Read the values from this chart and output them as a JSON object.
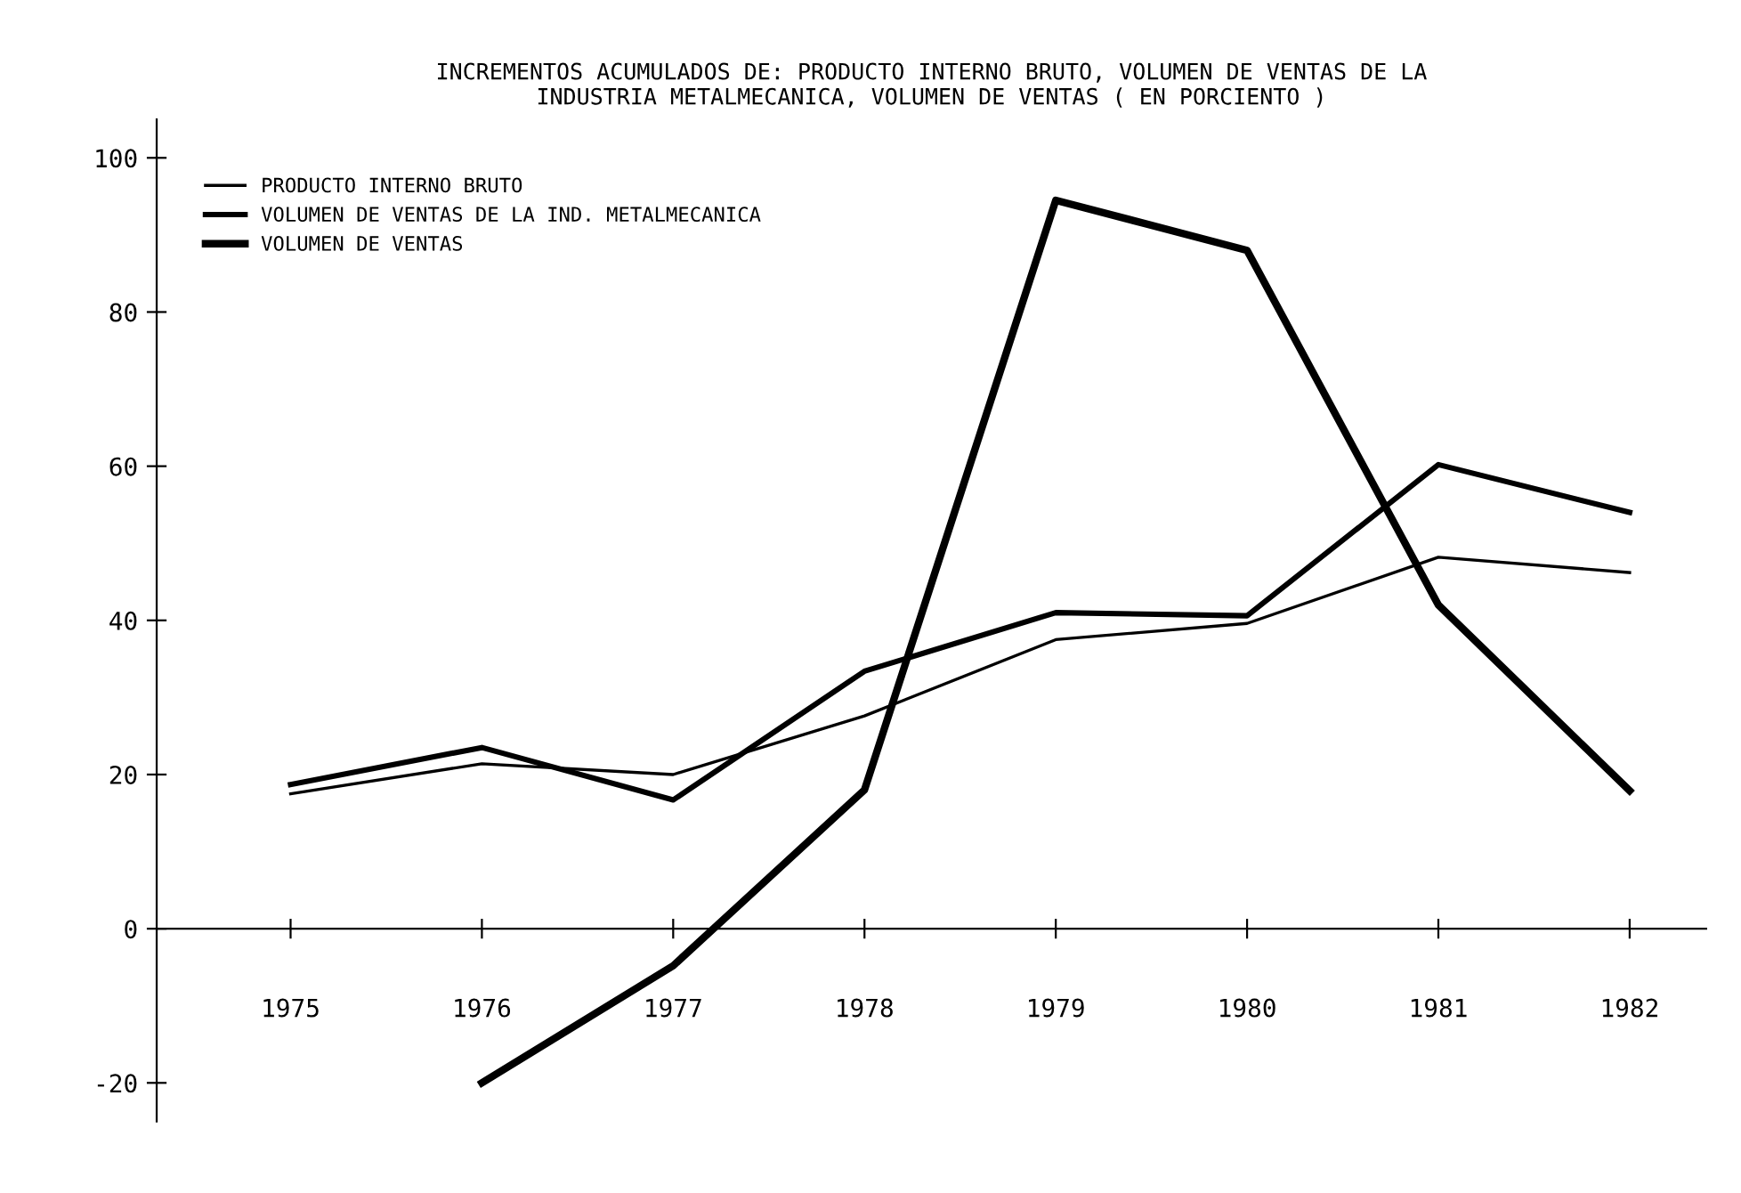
{
  "chart_data": {
    "type": "line",
    "title": "INCREMENTOS ACUMULADOS DE: PRODUCTO INTERNO BRUTO, VOLUMEN DE VENTAS DE LA\nINDUSTRIA METALMECANICA, VOLUMEN DE VENTAS ( EN PORCIENTO )",
    "x": [
      1975,
      1976,
      1977,
      1978,
      1979,
      1980,
      1981,
      1982
    ],
    "series": [
      {
        "name": "PRODUCTO INTERNO BRUTO",
        "color": "#000000",
        "values": [
          17.5,
          21.4,
          20,
          27.6,
          37.5,
          39.6,
          48.2,
          46.2
        ]
      },
      {
        "name": "VOLUMEN DE VENTAS DE LA IND. METALMECANICA",
        "color": "#000000",
        "values": [
          18.7,
          23.5,
          16.7,
          33.4,
          41.0,
          40.6,
          60.2,
          54.0
        ]
      },
      {
        "name": "VOLUMEN DE VENTAS",
        "color": "#000000",
        "values": [
          null,
          -20,
          -4.8,
          18.0,
          94.5,
          88,
          42,
          17.9
        ]
      }
    ],
    "xlim": [
      1974.3,
      1982.4
    ],
    "xticks": [
      1975,
      1976,
      1977,
      1978,
      1979,
      1980,
      1981,
      1982
    ],
    "ylim": [
      -25,
      105
    ],
    "yticks": [
      -20,
      0,
      20,
      40,
      60,
      80,
      100
    ],
    "legend": "upper left",
    "marker": "none",
    "line_style": "solid"
  }
}
